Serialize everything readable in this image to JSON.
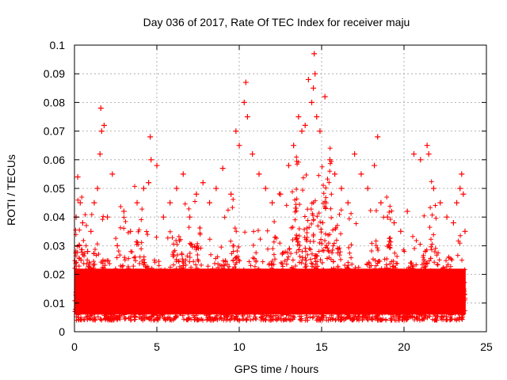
{
  "chart_data": {
    "type": "scatter",
    "title": "Day 036 of 2017, Rate Of TEC Index for receiver maju",
    "xlabel": "GPS time / hours",
    "ylabel": "ROTI / TECUs",
    "xlim": [
      0,
      24
    ],
    "ylim": [
      0,
      0.1
    ],
    "xticks": [
      0,
      5,
      10,
      15,
      20,
      25
    ],
    "xtick_labels": [
      "0",
      "5",
      "10",
      "15",
      "20",
      "25"
    ],
    "yticks": [
      0,
      0.01,
      0.02,
      0.03,
      0.04,
      0.05,
      0.06,
      0.07,
      0.08,
      0.09,
      0.1
    ],
    "ytick_labels": [
      "0",
      "0.01",
      "0.02",
      "0.03",
      "0.04",
      "0.05",
      "0.06",
      "0.07",
      "0.08",
      "0.09",
      "0.1"
    ],
    "grid": true,
    "marker": "plus",
    "color": "#ff0000",
    "series": [
      {
        "name": "ROTI",
        "x": [
          0.1,
          0.2,
          0.3,
          0.35,
          0.4,
          0.5,
          0.6,
          0.8,
          1.0,
          1.2,
          1.4,
          1.55,
          1.6,
          1.65,
          1.8,
          2.0,
          2.3,
          2.6,
          3.0,
          3.4,
          3.8,
          4.2,
          4.5,
          4.6,
          4.65,
          5.0,
          5.4,
          5.8,
          6.2,
          6.6,
          7.0,
          7.4,
          7.8,
          8.2,
          8.6,
          9.0,
          9.5,
          9.8,
          10.0,
          10.3,
          10.4,
          10.5,
          10.8,
          11.2,
          11.6,
          12.0,
          12.5,
          13.0,
          13.3,
          13.6,
          13.8,
          14.0,
          14.2,
          14.4,
          14.5,
          14.55,
          14.6,
          14.7,
          14.9,
          15.2,
          15.5,
          15.8,
          16.2,
          16.6,
          17.0,
          17.4,
          17.8,
          18.2,
          18.4,
          18.6,
          19.0,
          19.4,
          19.8,
          20.2,
          20.6,
          21.0,
          21.4,
          21.5,
          21.8,
          22.2,
          22.6,
          23.0,
          23.2,
          23.4,
          23.5,
          23.6,
          23.7
        ],
        "y": [
          0.04,
          0.054,
          0.03,
          0.045,
          0.025,
          0.038,
          0.02,
          0.028,
          0.035,
          0.045,
          0.05,
          0.062,
          0.078,
          0.07,
          0.072,
          0.04,
          0.055,
          0.03,
          0.042,
          0.035,
          0.045,
          0.05,
          0.052,
          0.068,
          0.06,
          0.058,
          0.04,
          0.045,
          0.05,
          0.055,
          0.04,
          0.048,
          0.052,
          0.045,
          0.05,
          0.057,
          0.048,
          0.07,
          0.065,
          0.08,
          0.087,
          0.075,
          0.062,
          0.055,
          0.05,
          0.045,
          0.048,
          0.058,
          0.065,
          0.075,
          0.07,
          0.072,
          0.088,
          0.08,
          0.085,
          0.097,
          0.09,
          0.075,
          0.07,
          0.082,
          0.06,
          0.055,
          0.05,
          0.045,
          0.062,
          0.055,
          0.05,
          0.058,
          0.068,
          0.045,
          0.04,
          0.038,
          0.035,
          0.042,
          0.062,
          0.06,
          0.065,
          0.062,
          0.05,
          0.045,
          0.04,
          0.038,
          0.045,
          0.05,
          0.055,
          0.048,
          0.035
        ]
      }
    ]
  }
}
